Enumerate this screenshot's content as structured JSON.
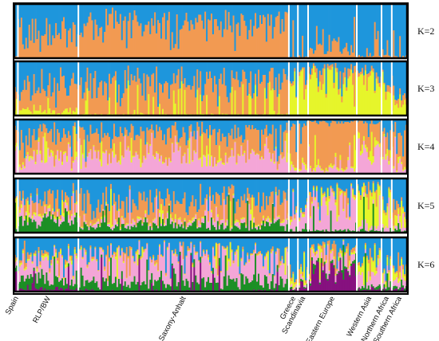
{
  "chart_data": {
    "type": "bar",
    "subtype": "stacked-structure-plot",
    "title": "",
    "xlabel": "",
    "ylabel": "",
    "ylim": [
      0,
      1
    ],
    "grid": false,
    "colors": {
      "blue": "#1e96dc",
      "orange": "#f29a52",
      "yellow": "#e6f52b",
      "pink": "#f4a6d7",
      "green": "#1c8f25",
      "purple": "#86117f"
    },
    "populations": [
      {
        "label": "Spain",
        "share": 0.009
      },
      {
        "label": "RLP/BW",
        "share": 0.154
      },
      {
        "label": "Saxony-Anhalt",
        "share": 0.536
      },
      {
        "label": "Greece",
        "share": 0.023
      },
      {
        "label": "Scandinavia",
        "share": 0.026
      },
      {
        "label": "Eastern Europe",
        "share": 0.124
      },
      {
        "label": "Western Asia",
        "share": 0.063
      },
      {
        "label": "Northern Africa",
        "share": 0.026
      },
      {
        "label": "Southern Africa",
        "share": 0.039
      }
    ],
    "panels": [
      {
        "label": "K=2",
        "components": [
          "blue",
          "orange"
        ],
        "mean_proportion": [
          [
            0.95,
            0.05
          ],
          [
            0.5,
            0.5
          ],
          [
            0.35,
            0.65
          ],
          [
            0.98,
            0.02
          ],
          [
            0.97,
            0.03
          ],
          [
            0.82,
            0.18
          ],
          [
            0.95,
            0.05
          ],
          [
            0.93,
            0.07
          ],
          [
            0.96,
            0.04
          ]
        ]
      },
      {
        "label": "K=3",
        "components": [
          "blue",
          "orange",
          "yellow"
        ],
        "mean_proportion": [
          [
            0.7,
            0.05,
            0.25
          ],
          [
            0.5,
            0.4,
            0.1
          ],
          [
            0.4,
            0.58,
            0.02
          ],
          [
            0.3,
            0.05,
            0.65
          ],
          [
            0.25,
            0.05,
            0.7
          ],
          [
            0.1,
            0.12,
            0.78
          ],
          [
            0.2,
            0.1,
            0.7
          ],
          [
            0.4,
            0.1,
            0.5
          ],
          [
            0.6,
            0.1,
            0.3
          ]
        ]
      },
      {
        "label": "K=4",
        "components": [
          "blue",
          "orange",
          "yellow",
          "pink"
        ],
        "mean_proportion": [
          [
            0.2,
            0.25,
            0.05,
            0.5
          ],
          [
            0.25,
            0.35,
            0.05,
            0.35
          ],
          [
            0.25,
            0.4,
            0.02,
            0.33
          ],
          [
            0.15,
            0.7,
            0.05,
            0.1
          ],
          [
            0.1,
            0.75,
            0.05,
            0.1
          ],
          [
            0.05,
            0.8,
            0.05,
            0.1
          ],
          [
            0.05,
            0.45,
            0.1,
            0.4
          ],
          [
            0.3,
            0.3,
            0.1,
            0.3
          ],
          [
            0.25,
            0.55,
            0.05,
            0.15
          ]
        ]
      },
      {
        "label": "K=5",
        "components": [
          "blue",
          "orange",
          "yellow",
          "pink",
          "green"
        ],
        "mean_proportion": [
          [
            0.6,
            0.05,
            0.1,
            0.05,
            0.2
          ],
          [
            0.4,
            0.2,
            0.05,
            0.1,
            0.25
          ],
          [
            0.45,
            0.3,
            0.03,
            0.07,
            0.15
          ],
          [
            0.7,
            0.05,
            0.05,
            0.15,
            0.05
          ],
          [
            0.55,
            0.05,
            0.05,
            0.3,
            0.05
          ],
          [
            0.3,
            0.05,
            0.05,
            0.55,
            0.05
          ],
          [
            0.2,
            0.05,
            0.6,
            0.1,
            0.05
          ],
          [
            0.5,
            0.05,
            0.3,
            0.1,
            0.05
          ],
          [
            0.65,
            0.1,
            0.1,
            0.1,
            0.05
          ]
        ]
      },
      {
        "label": "K=6",
        "components": [
          "blue",
          "orange",
          "yellow",
          "pink",
          "green",
          "purple"
        ],
        "mean_proportion": [
          [
            0.3,
            0.05,
            0.05,
            0.1,
            0.2,
            0.3
          ],
          [
            0.35,
            0.05,
            0.05,
            0.3,
            0.2,
            0.05
          ],
          [
            0.3,
            0.03,
            0.02,
            0.45,
            0.18,
            0.02
          ],
          [
            0.8,
            0.05,
            0.05,
            0.05,
            0.02,
            0.03
          ],
          [
            0.75,
            0.05,
            0.05,
            0.05,
            0.02,
            0.08
          ],
          [
            0.2,
            0.05,
            0.05,
            0.15,
            0.05,
            0.5
          ],
          [
            0.45,
            0.05,
            0.15,
            0.25,
            0.05,
            0.05
          ],
          [
            0.55,
            0.05,
            0.15,
            0.15,
            0.05,
            0.05
          ],
          [
            0.55,
            0.05,
            0.15,
            0.15,
            0.05,
            0.05
          ]
        ]
      }
    ]
  }
}
